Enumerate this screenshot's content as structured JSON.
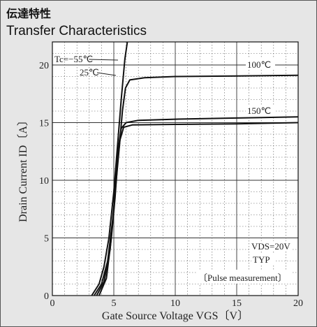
{
  "header": {
    "title_jp": "伝達特性",
    "title_en": "Transfer Characteristics"
  },
  "chart_data": {
    "type": "line",
    "xlabel": "Gate Source Voltage  VGS〔V〕",
    "ylabel": "Drain Current  ID〔A〕",
    "xlim": [
      0,
      20
    ],
    "ylim": [
      0,
      22
    ],
    "xticks": [
      0,
      5,
      10,
      15,
      20
    ],
    "yticks": [
      0,
      5,
      10,
      15,
      20
    ],
    "grid": true,
    "series": [
      {
        "name": "Tc=−55℃",
        "x": [
          3.2,
          3.8,
          4.2,
          4.6,
          5.0,
          5.3,
          5.6,
          5.9,
          6.1
        ],
        "y": [
          0,
          1.0,
          2.5,
          5.0,
          9.0,
          13.0,
          17.0,
          20.5,
          22.0
        ]
      },
      {
        "name": "25℃",
        "x": [
          3.4,
          4.0,
          4.5,
          4.9,
          5.2,
          5.5,
          5.7,
          5.95,
          6.3,
          7.5,
          10,
          15,
          20
        ],
        "y": [
          0,
          1.0,
          3.0,
          6.5,
          10.0,
          13.5,
          16.0,
          18.0,
          18.7,
          18.9,
          19.0,
          19.05,
          19.1
        ]
      },
      {
        "name": "100℃",
        "x": [
          3.6,
          4.2,
          4.7,
          5.0,
          5.2,
          5.4,
          5.6,
          6.0,
          7.0,
          10,
          15,
          20
        ],
        "y": [
          0,
          1.2,
          4.0,
          7.5,
          10.5,
          13.0,
          14.5,
          15.0,
          15.2,
          15.3,
          15.4,
          15.5
        ]
      },
      {
        "name": "150℃",
        "x": [
          3.8,
          4.4,
          4.8,
          5.1,
          5.3,
          5.5,
          5.8,
          6.5,
          10,
          15,
          20
        ],
        "y": [
          0,
          1.5,
          5.0,
          8.5,
          11.5,
          13.5,
          14.6,
          14.8,
          14.85,
          14.9,
          15.0
        ]
      }
    ],
    "annotations": {
      "tc_minus55": "Tc=−55℃",
      "tc_25": "25℃",
      "tc_100": "100℃",
      "tc_150": "150℃",
      "vds": "VDS=20V",
      "typ": "TYP",
      "pulse": "〔Pulse measurement〕"
    }
  }
}
